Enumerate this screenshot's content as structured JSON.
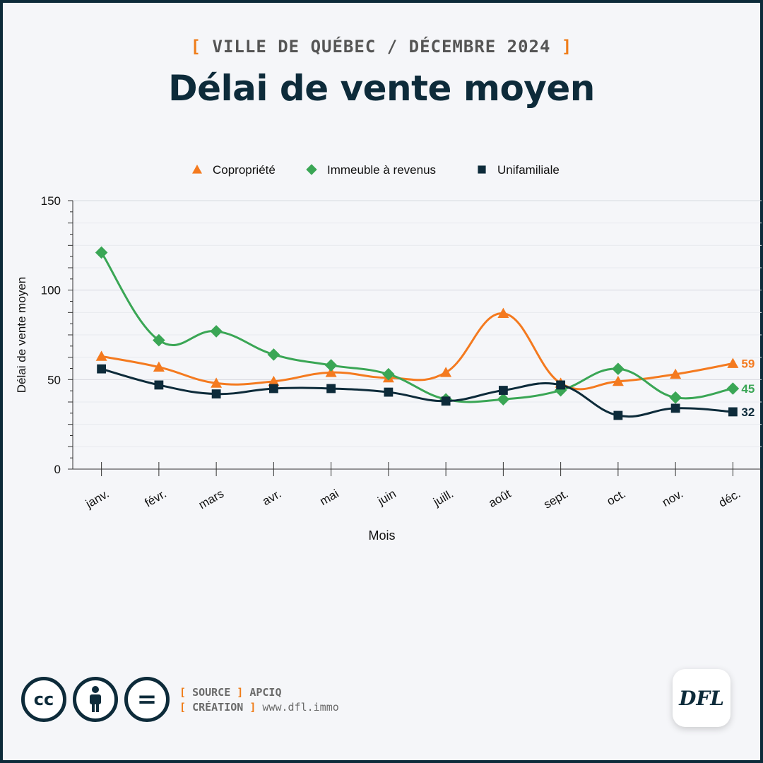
{
  "header": {
    "subtitle": "VILLE DE QUÉBEC / DÉCEMBRE 2024",
    "bracket_open": "[",
    "bracket_close": "]",
    "title": "Délai de vente moyen"
  },
  "chart_data": {
    "type": "line",
    "xlabel": "Mois",
    "ylabel": "Délai de vente moyen",
    "categories": [
      "janv.",
      "févr.",
      "mars",
      "avr.",
      "mai",
      "juin",
      "juill.",
      "août",
      "sept.",
      "oct.",
      "nov.",
      "déc."
    ],
    "ylim": [
      0,
      150
    ],
    "yticks": [
      0,
      50,
      100,
      150
    ],
    "grid": true,
    "legend_position": "top",
    "series": [
      {
        "name": "Copropriété",
        "color": "#f47a1f",
        "marker": "triangle",
        "values": [
          63,
          57,
          48,
          49,
          54,
          51,
          54,
          87,
          48,
          49,
          53,
          59
        ],
        "end_label": "59"
      },
      {
        "name": "Immeuble à revenus",
        "color": "#3aa655",
        "marker": "diamond",
        "values": [
          121,
          72,
          77,
          64,
          58,
          53,
          39,
          39,
          44,
          56,
          40,
          45
        ],
        "end_label": "45"
      },
      {
        "name": "Unifamiliale",
        "color": "#0d2b3a",
        "marker": "square",
        "values": [
          56,
          47,
          42,
          45,
          45,
          43,
          38,
          44,
          47,
          30,
          34,
          32
        ],
        "end_label": "32"
      }
    ]
  },
  "footer": {
    "source_label": "SOURCE",
    "source_value": "APCIQ",
    "creation_label": "CRÉATION",
    "creation_value": "www.dfl.immo",
    "license_icons": [
      "cc-icon",
      "attribution-icon",
      "no-derivatives-icon"
    ],
    "license_cc_text": "cc",
    "license_nd_text": "=",
    "logo_text": "DFL"
  }
}
